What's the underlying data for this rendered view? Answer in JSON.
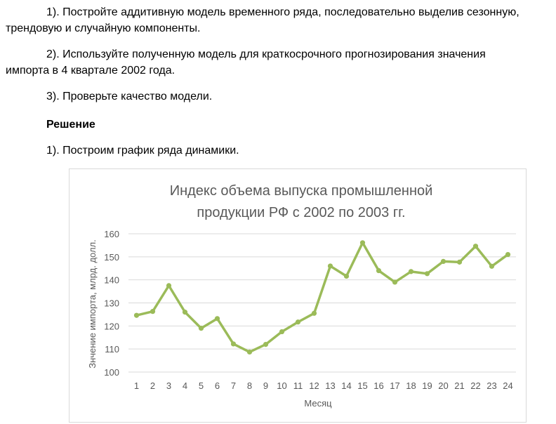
{
  "text": {
    "task1_line1": "1). Постройте аддитивную модель временного ряда, последовательно выделив сезонную,",
    "task1_line2": "трендовую и случайную компоненты.",
    "task2_line1": "2). Используйте полученную модель для краткосрочного прогнозирования значения",
    "task2_line2": "импорта в 4 квартале 2002 года.",
    "task3": "3). Проверьте качество модели.",
    "solution_heading": "Решение",
    "step1": "1). Построим график ряда динамики."
  },
  "colors": {
    "line": "#9bbb59",
    "grid": "#d9d9d9",
    "text": "#595959"
  },
  "chart_data": {
    "type": "line",
    "title": [
      "Индекс объема выпуска промышленной",
      "продукции РФ с 2002 по 2003 гг."
    ],
    "xlabel": "Месяц",
    "ylabel": "Знчение импорта, млрд. долл.",
    "x": [
      1,
      2,
      3,
      4,
      5,
      6,
      7,
      8,
      9,
      10,
      11,
      12,
      13,
      14,
      15,
      16,
      17,
      18,
      19,
      20,
      21,
      22,
      23,
      24
    ],
    "values": [
      124.6,
      126.3,
      137.5,
      126,
      119,
      123.2,
      112.2,
      108.7,
      112,
      117.5,
      121.7,
      125.5,
      146,
      141.6,
      156.1,
      144,
      139,
      143.6,
      142.7,
      148,
      147.7,
      154.6,
      145.9,
      151
    ],
    "ylim": [
      100,
      160
    ],
    "yticks": [
      100,
      110,
      120,
      130,
      140,
      150,
      160
    ],
    "grid": true,
    "legend": "none"
  }
}
